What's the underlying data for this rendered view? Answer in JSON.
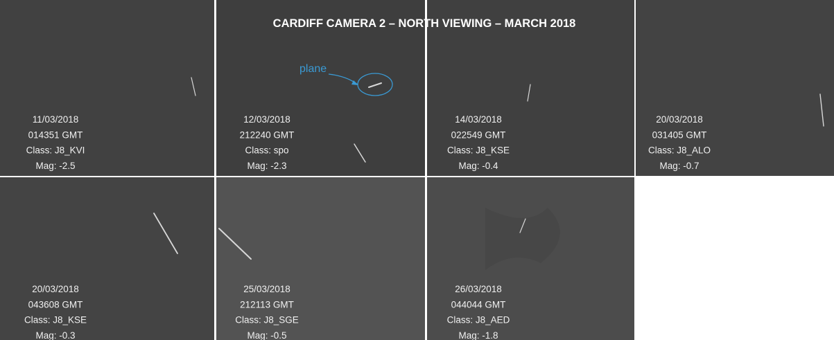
{
  "title": "CARDIFF CAMERA 2 – NORTH VIEWING – MARCH 2018",
  "annotation": "plane",
  "panels": [
    {
      "date": "11/03/2018",
      "time": "014351 GMT",
      "class": "Class: J8_KVI",
      "mag": "Mag: -2.5"
    },
    {
      "date": "12/03/2018",
      "time": "212240 GMT",
      "class": "Class: spo",
      "mag": "Mag: -2.3"
    },
    {
      "date": "14/03/2018",
      "time": "022549 GMT",
      "class": "Class: J8_KSE",
      "mag": "Mag: -0.4"
    },
    {
      "date": "20/03/2018",
      "time": "031405 GMT",
      "class": "Class: J8_ALO",
      "mag": "Mag: -0.7"
    },
    {
      "date": "20/03/2018",
      "time": "043608 GMT",
      "class": "Class: J8_KSE",
      "mag": "Mag: -0.3"
    },
    {
      "date": "25/03/2018",
      "time": "212113 GMT",
      "class": "Class: J8_SGE",
      "mag": "Mag: -0.5"
    },
    {
      "date": "26/03/2018",
      "time": "044044 GMT",
      "class": "Class: J8_AED",
      "mag": "Mag: -1.8"
    }
  ]
}
